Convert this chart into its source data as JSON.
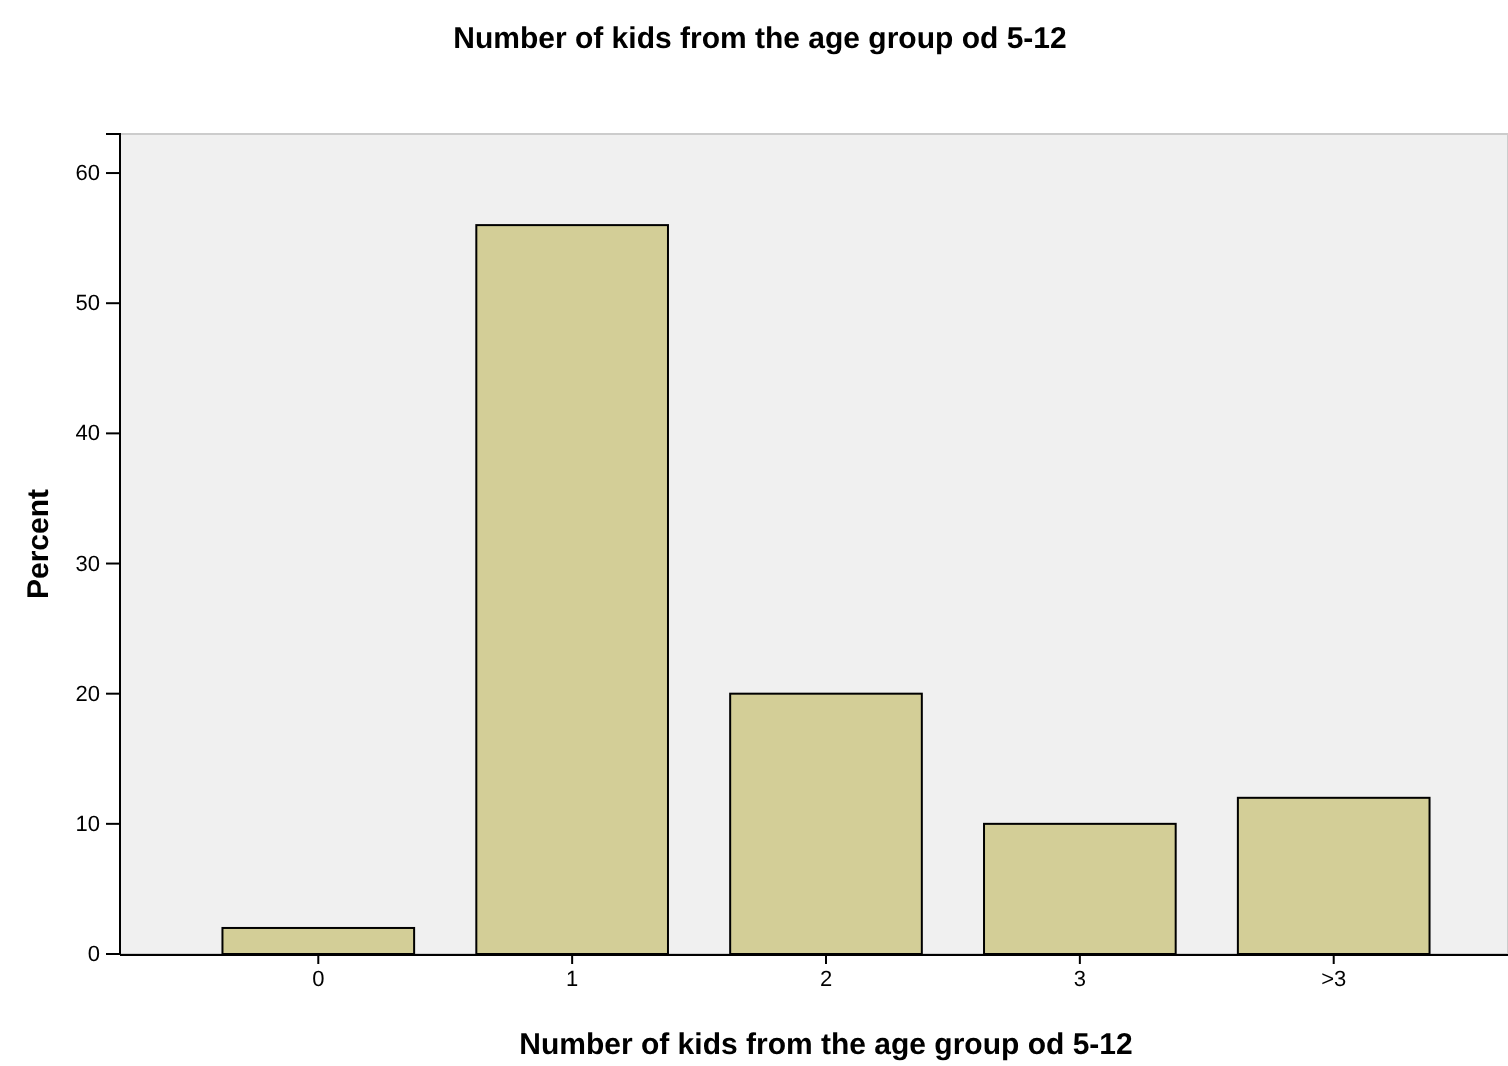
{
  "chart_data": {
    "type": "bar",
    "title": "Number of kids from the age group od 5-12",
    "xlabel": "Number of kids from the age group od 5-12",
    "ylabel": "Percent",
    "categories": [
      "0",
      "1",
      "2",
      "3",
      ">3"
    ],
    "values": [
      2,
      56,
      20,
      10,
      12
    ],
    "color": "#d3ce97",
    "ylim": [
      0,
      63
    ],
    "yticks": [
      0,
      10,
      20,
      30,
      40,
      50,
      60
    ],
    "grid": false
  }
}
